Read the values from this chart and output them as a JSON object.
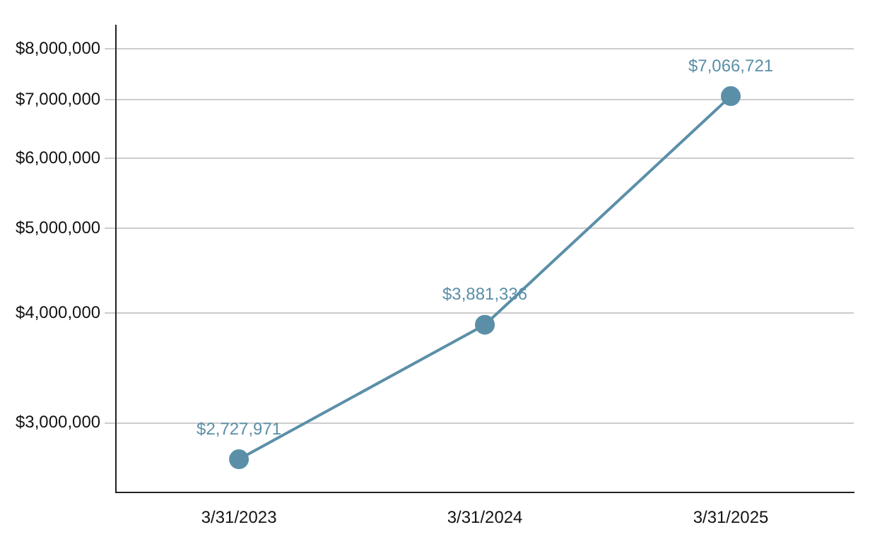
{
  "chart_data": {
    "type": "line",
    "categories": [
      "3/31/2023",
      "3/31/2024",
      "3/31/2025"
    ],
    "series": [
      {
        "color": "#5b8fa8",
        "values": [
          2727971,
          3881336,
          7066721
        ],
        "value_labels": [
          "$2,727,971",
          "$3,881,336",
          "$7,066,721"
        ]
      }
    ],
    "log": "y",
    "ylim": [
      2500000,
      8500000
    ],
    "yticks": [
      {
        "value": 3000000,
        "label": "$3,000,000"
      },
      {
        "value": 4000000,
        "label": "$4,000,000"
      },
      {
        "value": 5000000,
        "label": "$5,000,000"
      },
      {
        "value": 6000000,
        "label": "$6,000,000"
      },
      {
        "value": 7000000,
        "label": "$7,000,000"
      },
      {
        "value": 8000000,
        "label": "$8,000,000"
      }
    ],
    "grid": "y",
    "marker": "circle",
    "legend": false
  }
}
